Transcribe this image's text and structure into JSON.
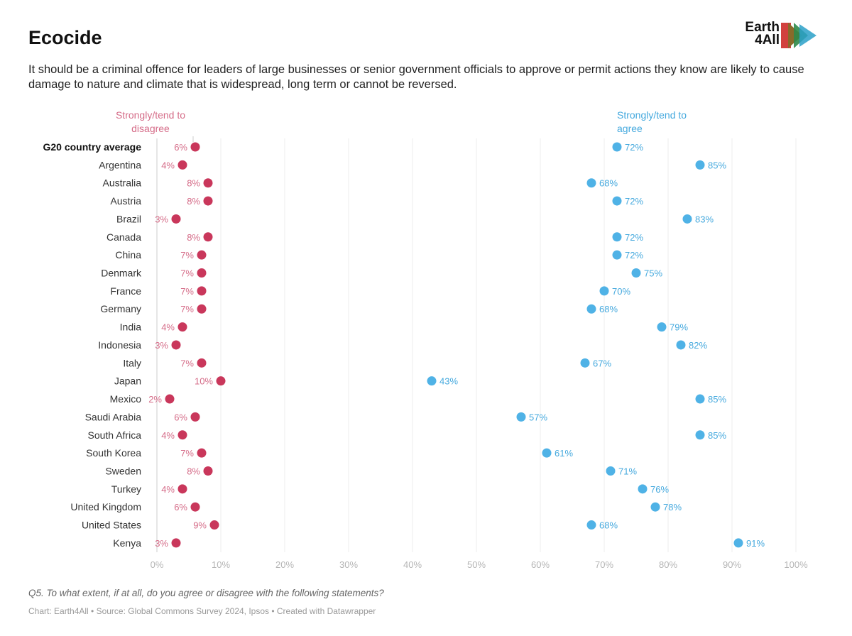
{
  "header": {
    "title": "Ecocide",
    "subtitle": "It should be a criminal offence for leaders of large businesses or senior government officials to approve or permit actions they know are likely to cause damage to nature and climate that is widespread, long term or cannot be reversed.",
    "logo_text": "Earth 4All"
  },
  "footer": {
    "question": "Q5. To what extent, if at all, do you agree or disagree with the following statements?",
    "source": "Chart: Earth4All • Source: Global Commons Survey 2024, Ipsos • Created with Datawrapper"
  },
  "colors": {
    "disagree": "#c9375b",
    "disagree_label": "#d56c88",
    "agree": "#4fb2e6",
    "agree_label": "#45a9de"
  },
  "chart_data": {
    "type": "range",
    "xlim": [
      0,
      100
    ],
    "x_ticks": [
      "0%",
      "10%",
      "20%",
      "30%",
      "40%",
      "50%",
      "60%",
      "70%",
      "80%",
      "90%",
      "100%"
    ],
    "grid": true,
    "series": [
      {
        "name": "Strongly/tend to disagree",
        "key": "disagree"
      },
      {
        "name": "Strongly/tend to agree",
        "key": "agree"
      }
    ],
    "rows": [
      {
        "label": "G20 country average",
        "bold": true,
        "disagree": 6,
        "agree": 72
      },
      {
        "label": "Argentina",
        "disagree": 4,
        "agree": 85
      },
      {
        "label": "Australia",
        "disagree": 8,
        "agree": 68
      },
      {
        "label": "Austria",
        "disagree": 8,
        "agree": 72
      },
      {
        "label": "Brazil",
        "disagree": 3,
        "agree": 83
      },
      {
        "label": "Canada",
        "disagree": 8,
        "agree": 72
      },
      {
        "label": "China",
        "disagree": 7,
        "agree": 72
      },
      {
        "label": "Denmark",
        "disagree": 7,
        "agree": 75
      },
      {
        "label": "France",
        "disagree": 7,
        "agree": 70
      },
      {
        "label": "Germany",
        "disagree": 7,
        "agree": 68
      },
      {
        "label": "India",
        "disagree": 4,
        "agree": 79
      },
      {
        "label": "Indonesia",
        "disagree": 3,
        "agree": 82
      },
      {
        "label": "Italy",
        "disagree": 7,
        "agree": 67
      },
      {
        "label": "Japan",
        "disagree": 10,
        "agree": 43
      },
      {
        "label": "Mexico",
        "disagree": 2,
        "agree": 85
      },
      {
        "label": "Saudi Arabia",
        "disagree": 6,
        "agree": 57
      },
      {
        "label": "South Africa",
        "disagree": 4,
        "agree": 85
      },
      {
        "label": "South Korea",
        "disagree": 7,
        "agree": 61
      },
      {
        "label": "Sweden",
        "disagree": 8,
        "agree": 71
      },
      {
        "label": "Turkey",
        "disagree": 4,
        "agree": 76
      },
      {
        "label": "United Kingdom",
        "disagree": 6,
        "agree": 78
      },
      {
        "label": "United States",
        "disagree": 9,
        "agree": 68
      },
      {
        "label": "Kenya",
        "disagree": 3,
        "agree": 91
      }
    ]
  }
}
